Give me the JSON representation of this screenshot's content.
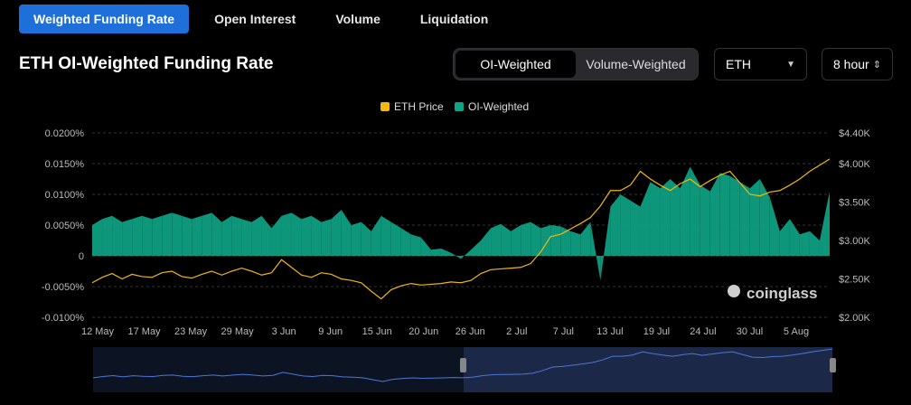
{
  "tabs": [
    "Weighted Funding Rate",
    "Open Interest",
    "Volume",
    "Liquidation"
  ],
  "title": "ETH OI-Weighted Funding Rate",
  "toggle": [
    "OI-Weighted",
    "Volume-Weighted"
  ],
  "coin_select": "ETH",
  "interval_select": "8 hour",
  "watermark": "coinglass",
  "colors": {
    "price": "#f0b90b",
    "positive": "#0ea384",
    "negative": "#e0273a",
    "accent": "#1e6fd9"
  },
  "chart_data": {
    "type": "area",
    "legend": [
      "ETH Price",
      "OI-Weighted"
    ],
    "x_ticks": [
      "12 May",
      "17 May",
      "23 May",
      "29 May",
      "3 Jun",
      "9 Jun",
      "15 Jun",
      "20 Jun",
      "26 Jun",
      "2 Jul",
      "7 Jul",
      "13 Jul",
      "19 Jul",
      "24 Jul",
      "30 Jul",
      "5 Aug"
    ],
    "y_left_ticks": [
      "0.0200%",
      "0.0150%",
      "0.0100%",
      "0.0050%",
      "0",
      "-0.0050%",
      "-0.0100%"
    ],
    "y_left_range": [
      -0.01,
      0.02
    ],
    "y_right_ticks": [
      "$4.40K",
      "$4.00K",
      "$3.50K",
      "$3.00K",
      "$2.50K",
      "$2.00K"
    ],
    "y_right_range": [
      2000,
      4400
    ],
    "series": [
      {
        "name": "OI-Weighted",
        "axis": "left",
        "unit": "%",
        "values": [
          0.005,
          0.006,
          0.0065,
          0.0055,
          0.006,
          0.0065,
          0.006,
          0.0065,
          0.007,
          0.0065,
          0.006,
          0.0065,
          0.007,
          0.0055,
          0.0065,
          0.006,
          0.0055,
          0.0065,
          0.0045,
          0.0065,
          0.007,
          0.006,
          0.0065,
          0.0055,
          0.006,
          0.0075,
          0.005,
          0.0055,
          0.004,
          0.0065,
          0.0055,
          0.0045,
          0.0035,
          0.003,
          0.001,
          0.0012,
          0.0005,
          -0.0005,
          0.001,
          0.0025,
          0.0045,
          0.0052,
          0.004,
          0.005,
          0.0055,
          0.0045,
          0.005,
          0.0048,
          0.004,
          0.0035,
          0.0055,
          -0.004,
          0.008,
          0.01,
          0.009,
          0.008,
          0.012,
          0.011,
          0.0125,
          0.011,
          0.0145,
          0.0115,
          0.0105,
          0.0135,
          0.013,
          0.012,
          0.011,
          0.0125,
          0.0095,
          0.004,
          0.006,
          0.0035,
          0.004,
          0.0025,
          0.0105
        ]
      },
      {
        "name": "ETH Price",
        "axis": "right",
        "unit": "USD",
        "values": [
          2450,
          2520,
          2570,
          2500,
          2560,
          2530,
          2520,
          2580,
          2600,
          2530,
          2510,
          2560,
          2600,
          2550,
          2600,
          2640,
          2600,
          2550,
          2580,
          2750,
          2650,
          2550,
          2520,
          2580,
          2560,
          2500,
          2480,
          2450,
          2340,
          2240,
          2360,
          2410,
          2440,
          2420,
          2430,
          2440,
          2460,
          2450,
          2480,
          2570,
          2620,
          2630,
          2640,
          2650,
          2700,
          2850,
          3050,
          3080,
          3150,
          3220,
          3300,
          3450,
          3650,
          3650,
          3720,
          3900,
          3800,
          3720,
          3650,
          3740,
          3800,
          3700,
          3780,
          3850,
          3900,
          3750,
          3600,
          3580,
          3630,
          3650,
          3720,
          3800,
          3900,
          3980,
          4060
        ]
      }
    ]
  }
}
